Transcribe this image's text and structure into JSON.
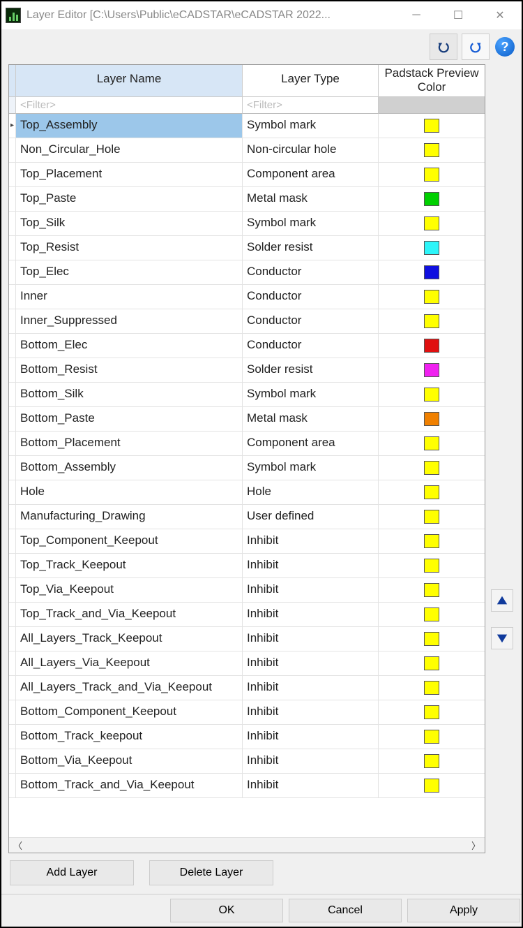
{
  "window": {
    "title": "Layer Editor [C:\\Users\\Public\\eCADSTAR\\eCADSTAR 2022..."
  },
  "toolbar": {
    "undo_tip": "Undo",
    "redo_tip": "Redo",
    "help_tip": "Help"
  },
  "grid": {
    "headers": {
      "name": "Layer Name",
      "type": "Layer Type",
      "color": "Padstack Preview Color"
    },
    "filter_placeholder": "<Filter>",
    "rows": [
      {
        "name": "Top_Assembly",
        "type": "Symbol mark",
        "color": "#FFFF00",
        "selected": true
      },
      {
        "name": "Non_Circular_Hole",
        "type": "Non-circular hole",
        "color": "#FFFF00"
      },
      {
        "name": "Top_Placement",
        "type": "Component area",
        "color": "#FFFF00"
      },
      {
        "name": "Top_Paste",
        "type": "Metal mask",
        "color": "#00D000"
      },
      {
        "name": "Top_Silk",
        "type": "Symbol mark",
        "color": "#FFFF00"
      },
      {
        "name": "Top_Resist",
        "type": "Solder resist",
        "color": "#2CF5F9"
      },
      {
        "name": "Top_Elec",
        "type": "Conductor",
        "color": "#1010E0"
      },
      {
        "name": "Inner",
        "type": "Conductor",
        "color": "#FFFF00"
      },
      {
        "name": "Inner_Suppressed",
        "type": "Conductor",
        "color": "#FFFF00"
      },
      {
        "name": "Bottom_Elec",
        "type": "Conductor",
        "color": "#E01010"
      },
      {
        "name": "Bottom_Resist",
        "type": "Solder resist",
        "color": "#F020F0"
      },
      {
        "name": "Bottom_Silk",
        "type": "Symbol mark",
        "color": "#FFFF00"
      },
      {
        "name": "Bottom_Paste",
        "type": "Metal mask",
        "color": "#F08000"
      },
      {
        "name": "Bottom_Placement",
        "type": "Component area",
        "color": "#FFFF00"
      },
      {
        "name": "Bottom_Assembly",
        "type": "Symbol mark",
        "color": "#FFFF00"
      },
      {
        "name": "Hole",
        "type": "Hole",
        "color": "#FFFF00"
      },
      {
        "name": "Manufacturing_Drawing",
        "type": "User defined",
        "color": "#FFFF00"
      },
      {
        "name": "Top_Component_Keepout",
        "type": "Inhibit",
        "color": "#FFFF00"
      },
      {
        "name": "Top_Track_Keepout",
        "type": "Inhibit",
        "color": "#FFFF00"
      },
      {
        "name": "Top_Via_Keepout",
        "type": "Inhibit",
        "color": "#FFFF00"
      },
      {
        "name": "Top_Track_and_Via_Keepout",
        "type": "Inhibit",
        "color": "#FFFF00"
      },
      {
        "name": "All_Layers_Track_Keepout",
        "type": "Inhibit",
        "color": "#FFFF00"
      },
      {
        "name": "All_Layers_Via_Keepout",
        "type": "Inhibit",
        "color": "#FFFF00"
      },
      {
        "name": "All_Layers_Track_and_Via_Keepout",
        "type": "Inhibit",
        "color": "#FFFF00"
      },
      {
        "name": "Bottom_Component_Keepout",
        "type": "Inhibit",
        "color": "#FFFF00"
      },
      {
        "name": "Bottom_Track_keepout",
        "type": "Inhibit",
        "color": "#FFFF00"
      },
      {
        "name": "Bottom_Via_Keepout",
        "type": "Inhibit",
        "color": "#FFFF00"
      },
      {
        "name": "Bottom_Track_and_Via_Keepout",
        "type": "Inhibit",
        "color": "#FFFF00"
      }
    ]
  },
  "buttons": {
    "add_layer": "Add Layer",
    "delete_layer": "Delete Layer",
    "ok": "OK",
    "cancel": "Cancel",
    "apply": "Apply"
  }
}
